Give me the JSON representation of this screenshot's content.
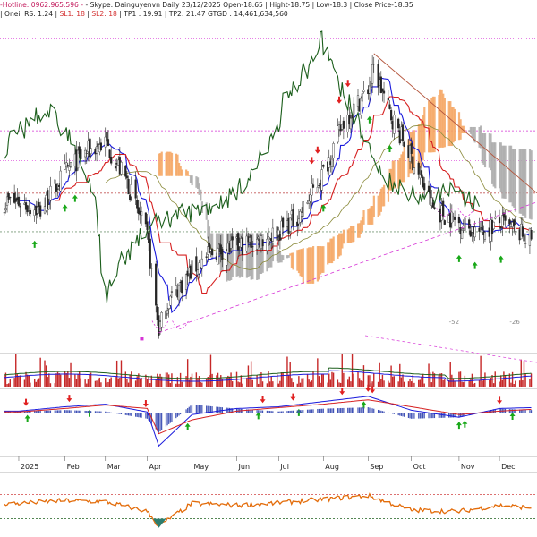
{
  "header": {
    "line1": {
      "hotline": "-Hotline: 0962.965.596",
      "sep": " - ",
      "skype": "- Skype: Dainguyenvn  Daily 23/12/2025 Open-18.65 | Hight-18.75 | Low-18.3 | Close Price-18.35"
    },
    "line2": {
      "oneil": "| Oneil RS: 1.24 | ",
      "sl1": "SL1: 18",
      "sep1": " | ",
      "sl2": "SL2: 18",
      "rest": " | TP1 : 19.91 | TP2: 21.47 GTGD : 14,461,634,560"
    }
  },
  "colors": {
    "background": "#ffffff",
    "candle": "#262626",
    "kijun_red": "#d62020",
    "tenkan_blue": "#1a1adc",
    "chikou_green": "#1b5e1b",
    "cloud_bull": "#f4a460",
    "cloud_bear": "#a9a9a9",
    "senkou_olive": "#8a8a3a",
    "volume_bar": "#c62828",
    "macd_hist": "#3f51b5",
    "rsi_line": "#e36c0a",
    "pink_guides": "#d633d6",
    "arrow_up": "#18a818",
    "arrow_down": "#e02020",
    "resistance_trend": "#b4553c"
  },
  "chart_data": [
    {
      "panel": "price",
      "type": "line",
      "x": [
        "2025-01-02",
        "2025-01-17",
        "2025-02-03",
        "2025-02-18",
        "2025-03-03",
        "2025-03-18",
        "2025-04-01",
        "2025-04-09",
        "2025-04-16",
        "2025-05-02",
        "2025-05-16",
        "2025-06-02",
        "2025-06-16",
        "2025-07-01",
        "2025-07-16",
        "2025-08-01",
        "2025-08-15",
        "2025-09-01",
        "2025-09-05",
        "2025-09-16",
        "2025-10-01",
        "2025-10-16",
        "2025-11-03",
        "2025-11-17",
        "2025-12-01",
        "2025-12-23"
      ],
      "series": [
        {
          "values": [
            19.6,
            19.3,
            20.6,
            21.3,
            21.6,
            20.3,
            18.4,
            15.3,
            16.3,
            17.3,
            17.9,
            18.1,
            18.3,
            18.6,
            19.2,
            20.6,
            22.3,
            23.4,
            24.1,
            22.6,
            21.1,
            19.4,
            18.9,
            18.6,
            18.9,
            18.35
          ]
        }
      ],
      "xticklabels": [
        "2025",
        "Feb",
        "Mar",
        "Apr",
        "May",
        "Jun",
        "Jul",
        "Aug",
        "Sep",
        "Oct",
        "Nov",
        "Dec"
      ],
      "annotations": [
        "-52",
        "-26"
      ],
      "markers": {
        "buy_arrows": 11,
        "sell_arrows": 8
      }
    },
    {
      "panel": "volume",
      "type": "bar",
      "note": "daily trading volume with moving averages"
    },
    {
      "panel": "macd",
      "type": "line",
      "x": [
        "2025-01-02",
        "2025-02-03",
        "2025-03-03",
        "2025-04-01",
        "2025-04-09",
        "2025-05-02",
        "2025-06-02",
        "2025-07-01",
        "2025-08-01",
        "2025-09-01",
        "2025-10-01",
        "2025-11-03",
        "2025-12-01",
        "2025-12-23"
      ],
      "series": [
        {
          "values": [
            0.1,
            0.35,
            0.5,
            0.05,
            -1.9,
            -0.1,
            0.25,
            0.35,
            0.65,
            0.95,
            0.15,
            -0.25,
            0.25,
            0.3
          ]
        },
        {
          "values": [
            0.05,
            0.25,
            0.45,
            0.25,
            -1.2,
            -0.4,
            0.1,
            0.3,
            0.5,
            0.75,
            0.35,
            -0.1,
            0.1,
            0.2
          ]
        }
      ]
    },
    {
      "panel": "rsi",
      "type": "line",
      "x": [
        "2025-01-02",
        "2025-02-03",
        "2025-03-03",
        "2025-04-01",
        "2025-04-09",
        "2025-05-02",
        "2025-06-02",
        "2025-07-01",
        "2025-08-01",
        "2025-09-01",
        "2025-10-01",
        "2025-11-03",
        "2025-12-01",
        "2025-12-23"
      ],
      "series": [
        {
          "values": [
            55,
            60,
            58,
            42,
            18,
            55,
            52,
            56,
            62,
            68,
            44,
            42,
            52,
            48
          ]
        }
      ],
      "ylim": [
        0,
        100
      ]
    }
  ]
}
